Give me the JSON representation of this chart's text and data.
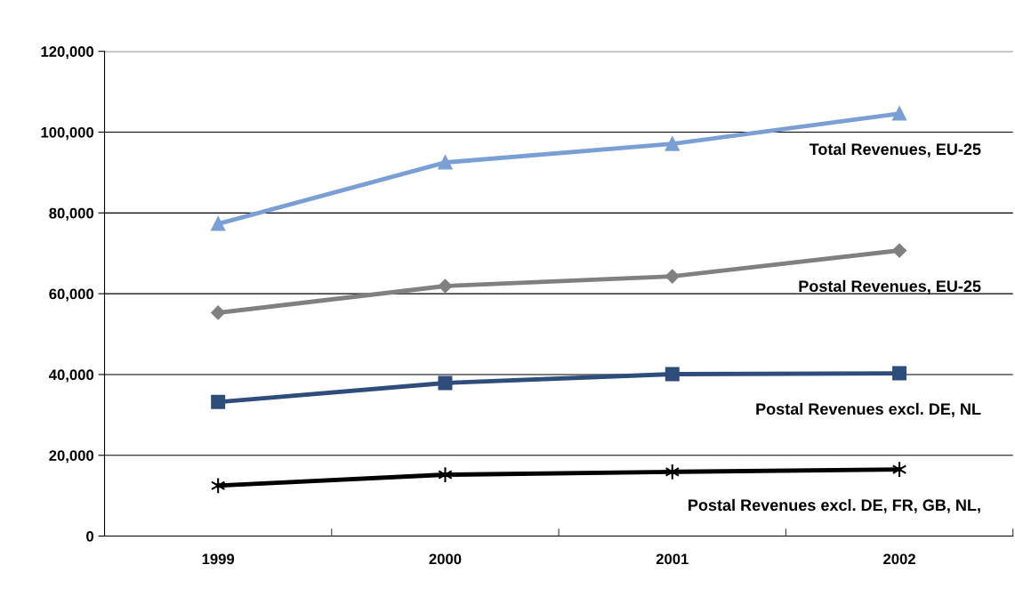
{
  "chart_data": {
    "type": "line",
    "categories": [
      "1999",
      "2000",
      "2001",
      "2002"
    ],
    "series": [
      {
        "name": "Total Revenues, EU-25",
        "color": "#7a9fd4",
        "marker": "triangle",
        "values": [
          77300,
          92500,
          97100,
          104600
        ]
      },
      {
        "name": "Postal Revenues, EU-25",
        "color": "#808080",
        "marker": "diamond",
        "values": [
          55300,
          61900,
          64300,
          70700
        ]
      },
      {
        "name": "Postal Revenues excl. DE, NL",
        "color": "#2e4d7b",
        "marker": "square",
        "values": [
          33200,
          37900,
          40100,
          40300
        ]
      },
      {
        "name": "Postal Revenues excl. DE, FR, GB, NL,",
        "color": "#000000",
        "marker": "cross",
        "values": [
          12500,
          15200,
          15900,
          16500
        ]
      }
    ],
    "ylim": [
      0,
      120000
    ],
    "yticks": [
      {
        "value": 0,
        "label": "0"
      },
      {
        "value": 20000,
        "label": "20,000"
      },
      {
        "value": 40000,
        "label": "40,000"
      },
      {
        "value": 60000,
        "label": "60,000"
      },
      {
        "value": 80000,
        "label": "80,000"
      },
      {
        "value": 100000,
        "label": "100,000"
      },
      {
        "value": 120000,
        "label": "120,000"
      }
    ],
    "grid": "y",
    "legend": false,
    "line_style": "solid"
  }
}
